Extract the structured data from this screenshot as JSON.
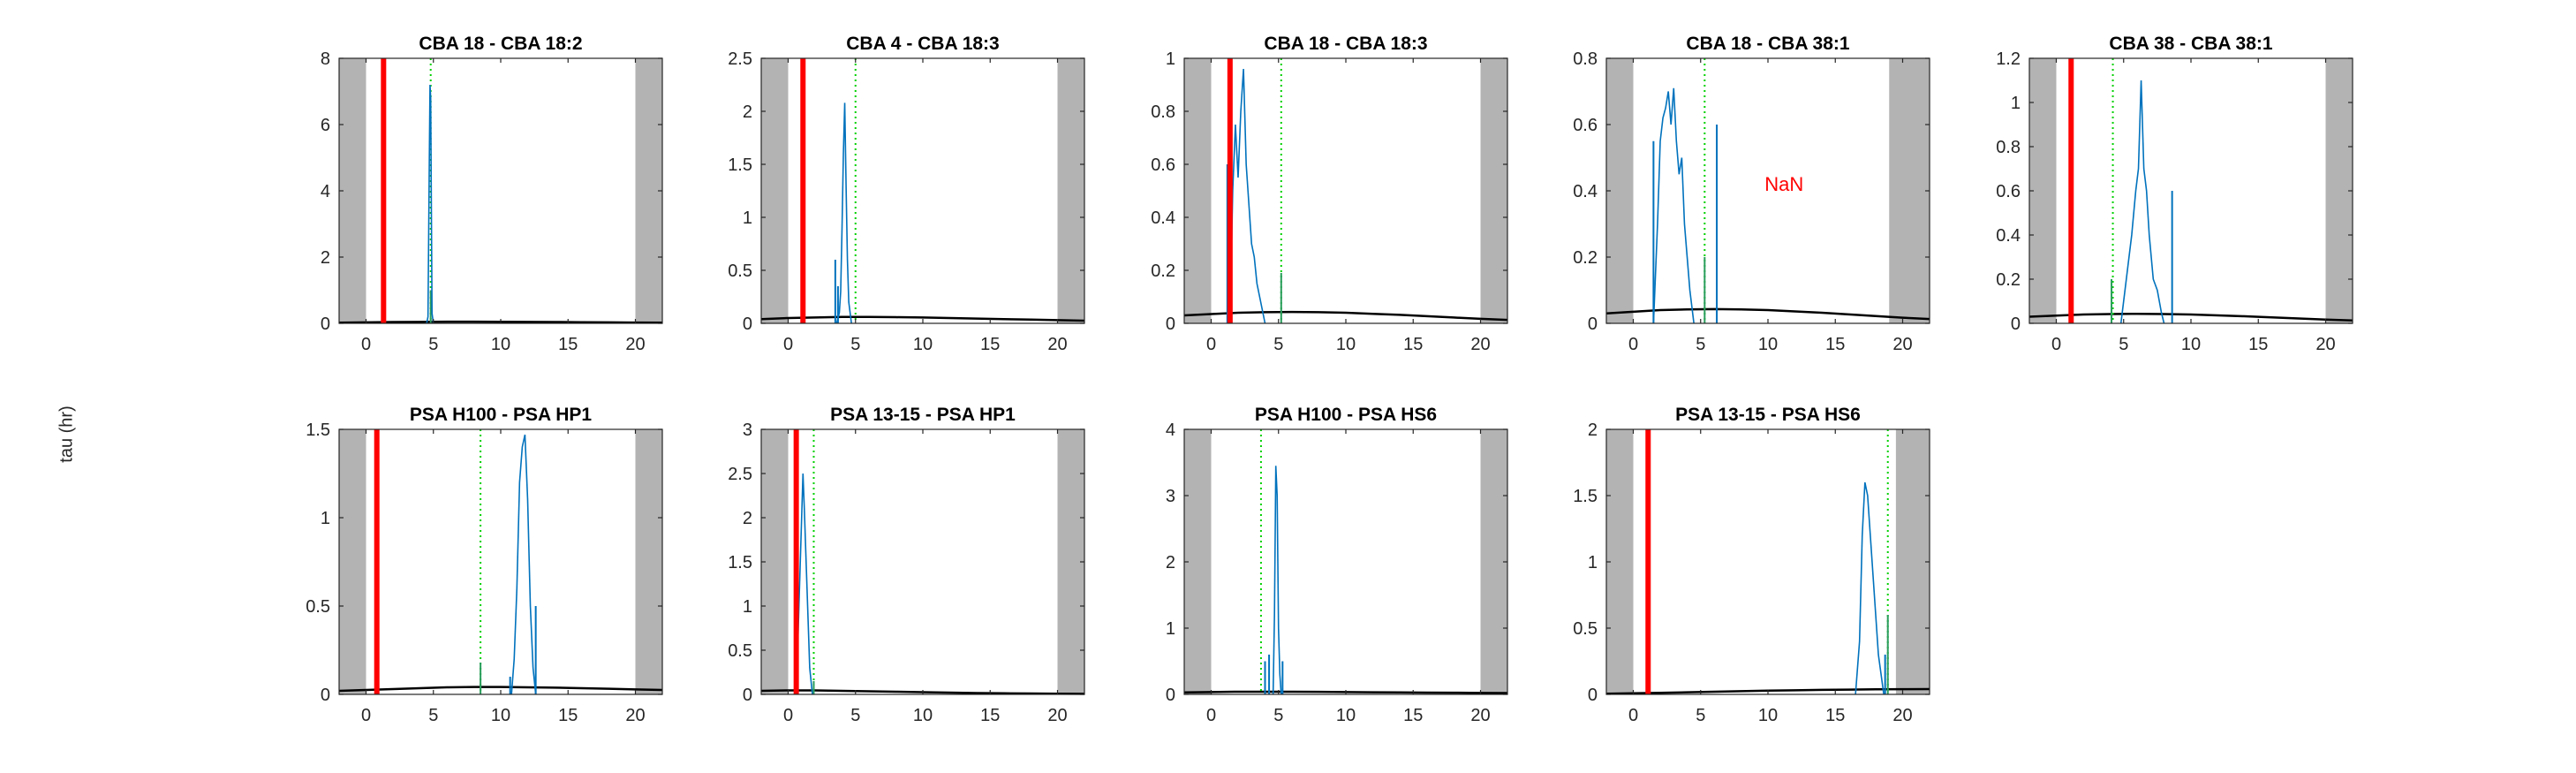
{
  "figure": {
    "ylabel": "tau (hr)"
  },
  "chart_data": [
    {
      "type": "line",
      "title": "CBA 18 - CBA 18:2",
      "xlim": [
        -2,
        22
      ],
      "ylim": [
        0,
        8
      ],
      "xticks": [
        0,
        5,
        10,
        15,
        20
      ],
      "yticks": [
        0,
        2,
        4,
        6,
        8
      ],
      "ytick_labels": [
        "0",
        "2",
        "4",
        "6",
        "8"
      ],
      "shaded_x": [
        [
          -2,
          0
        ],
        [
          20,
          22
        ]
      ],
      "red_line_x": 1.3,
      "green_dotted_x": 4.8,
      "green_stems": [
        {
          "x": 4.8,
          "y": 1.0
        }
      ],
      "blue_series": {
        "x": [
          4.5,
          4.6,
          4.7,
          4.75,
          4.8,
          4.85,
          4.9,
          5.0
        ],
        "y": [
          0,
          0.2,
          5.0,
          7.2,
          6.8,
          3.5,
          0.3,
          0
        ]
      },
      "blue_stems": [],
      "black_curve": {
        "x": [
          -2,
          0,
          2,
          4,
          6,
          8,
          10,
          12,
          14,
          16,
          18,
          20,
          22
        ],
        "y": [
          0.02,
          0.03,
          0.04,
          0.045,
          0.05,
          0.05,
          0.048,
          0.045,
          0.04,
          0.035,
          0.03,
          0.025,
          0.02
        ]
      },
      "annotation": ""
    },
    {
      "type": "line",
      "title": "CBA 4 - CBA 18:3",
      "xlim": [
        -2,
        22
      ],
      "ylim": [
        0,
        2.5
      ],
      "xticks": [
        0,
        5,
        10,
        15,
        20
      ],
      "yticks": [
        0,
        0.5,
        1,
        1.5,
        2,
        2.5
      ],
      "ytick_labels": [
        "0",
        "0.5",
        "1",
        "1.5",
        "2",
        "2.5"
      ],
      "shaded_x": [
        [
          -2,
          0
        ],
        [
          20,
          22
        ]
      ],
      "red_line_x": 1.1,
      "green_dotted_x": 5.0,
      "green_stems": [],
      "blue_series": {
        "x": [
          3.6,
          3.8,
          3.9,
          4.0,
          4.1,
          4.2,
          4.3,
          4.4,
          4.5,
          4.7
        ],
        "y": [
          0,
          0.1,
          0.3,
          0.9,
          1.6,
          2.08,
          1.3,
          0.6,
          0.2,
          0
        ]
      },
      "blue_stems": [
        {
          "x": 3.5,
          "y": 0.6
        },
        {
          "x": 3.7,
          "y": 0.35
        }
      ],
      "black_curve": {
        "x": [
          -2,
          0,
          2,
          4,
          6,
          8,
          10,
          12,
          14,
          16,
          18,
          20,
          22
        ],
        "y": [
          0.04,
          0.05,
          0.055,
          0.06,
          0.06,
          0.058,
          0.055,
          0.05,
          0.045,
          0.04,
          0.035,
          0.03,
          0.025
        ]
      },
      "annotation": ""
    },
    {
      "type": "line",
      "title": "CBA 18 - CBA 18:3",
      "xlim": [
        -2,
        22
      ],
      "ylim": [
        0,
        1
      ],
      "xticks": [
        0,
        5,
        10,
        15,
        20
      ],
      "yticks": [
        0,
        0.2,
        0.4,
        0.6,
        0.8,
        1
      ],
      "ytick_labels": [
        "0",
        "0.2",
        "0.4",
        "0.6",
        "0.8",
        "1"
      ],
      "shaded_x": [
        [
          -2,
          0
        ],
        [
          20,
          22
        ]
      ],
      "red_line_x": 1.4,
      "green_dotted_x": 5.2,
      "green_stems": [
        {
          "x": 5.2,
          "y": 0.19
        }
      ],
      "blue_series": {
        "x": [
          1.4,
          1.6,
          1.8,
          2.0,
          2.2,
          2.4,
          2.6,
          2.8,
          3.0,
          3.2,
          3.4,
          3.6,
          3.8,
          4.0
        ],
        "y": [
          0,
          0.5,
          0.75,
          0.55,
          0.8,
          0.96,
          0.6,
          0.45,
          0.3,
          0.25,
          0.15,
          0.1,
          0.05,
          0
        ]
      },
      "blue_stems": [
        {
          "x": 1.2,
          "y": 0.6
        }
      ],
      "black_curve": {
        "x": [
          -2,
          0,
          2,
          4,
          6,
          8,
          10,
          12,
          14,
          16,
          18,
          20,
          22
        ],
        "y": [
          0.03,
          0.035,
          0.04,
          0.042,
          0.043,
          0.042,
          0.04,
          0.036,
          0.032,
          0.027,
          0.022,
          0.017,
          0.013
        ]
      },
      "annotation": ""
    },
    {
      "type": "line",
      "title": "CBA 18 - CBA 38:1",
      "xlim": [
        -2,
        22
      ],
      "ylim": [
        0,
        0.8
      ],
      "xticks": [
        0,
        5,
        10,
        15,
        20
      ],
      "yticks": [
        0,
        0.2,
        0.4,
        0.6,
        0.8
      ],
      "ytick_labels": [
        "0",
        "0.2",
        "0.4",
        "0.6",
        "0.8"
      ],
      "shaded_x": [
        [
          -2,
          0
        ],
        [
          19,
          22
        ]
      ],
      "red_line_x": null,
      "green_dotted_x": 5.3,
      "green_stems": [
        {
          "x": 5.3,
          "y": 0.2
        }
      ],
      "blue_series": {
        "x": [
          1.5,
          1.8,
          2.0,
          2.2,
          2.4,
          2.6,
          2.8,
          3.0,
          3.2,
          3.4,
          3.6,
          3.8,
          4.0,
          4.2,
          4.5
        ],
        "y": [
          0,
          0.3,
          0.55,
          0.62,
          0.65,
          0.7,
          0.6,
          0.71,
          0.55,
          0.45,
          0.5,
          0.3,
          0.2,
          0.1,
          0
        ]
      },
      "blue_stems": [
        {
          "x": 1.5,
          "y": 0.55
        },
        {
          "x": 6.2,
          "y": 0.6
        }
      ],
      "black_curve": {
        "x": [
          -2,
          0,
          2,
          4,
          6,
          8,
          10,
          12,
          14,
          16,
          18,
          20,
          22
        ],
        "y": [
          0.03,
          0.035,
          0.04,
          0.042,
          0.043,
          0.042,
          0.04,
          0.036,
          0.032,
          0.027,
          0.022,
          0.017,
          0.013
        ]
      },
      "annotation": "NaN"
    },
    {
      "type": "line",
      "title": "CBA 38 - CBA 38:1",
      "xlim": [
        -2,
        22
      ],
      "ylim": [
        0,
        1.2
      ],
      "xticks": [
        0,
        5,
        10,
        15,
        20
      ],
      "yticks": [
        0,
        0.2,
        0.4,
        0.6,
        0.8,
        1,
        1.2
      ],
      "ytick_labels": [
        "0",
        "0.2",
        "0.4",
        "0.6",
        "0.8",
        "1",
        "1.2"
      ],
      "shaded_x": [
        [
          -2,
          0
        ],
        [
          20,
          22
        ]
      ],
      "red_line_x": 1.1,
      "green_dotted_x": 4.2,
      "green_stems": [
        {
          "x": 4.1,
          "y": 0.2
        }
      ],
      "blue_series": {
        "x": [
          4.8,
          5.2,
          5.6,
          5.9,
          6.1,
          6.3,
          6.5,
          6.7,
          6.9,
          7.2,
          7.5,
          7.8,
          8.0
        ],
        "y": [
          0,
          0.2,
          0.4,
          0.6,
          0.7,
          1.1,
          0.7,
          0.6,
          0.4,
          0.2,
          0.15,
          0.05,
          0
        ]
      },
      "blue_stems": [
        {
          "x": 8.6,
          "y": 0.6
        }
      ],
      "black_curve": {
        "x": [
          -2,
          0,
          2,
          4,
          6,
          8,
          10,
          12,
          14,
          16,
          18,
          20,
          22
        ],
        "y": [
          0.03,
          0.035,
          0.04,
          0.042,
          0.043,
          0.042,
          0.04,
          0.036,
          0.032,
          0.027,
          0.022,
          0.017,
          0.013
        ]
      },
      "annotation": ""
    },
    {
      "type": "line",
      "title": "PSA H100 - PSA HP1",
      "xlim": [
        -2,
        22
      ],
      "ylim": [
        0,
        1.5
      ],
      "xticks": [
        0,
        5,
        10,
        15,
        20
      ],
      "yticks": [
        0,
        0.5,
        1,
        1.5
      ],
      "ytick_labels": [
        "0",
        "0.5",
        "1",
        "1.5"
      ],
      "shaded_x": [
        [
          -2,
          0
        ],
        [
          20,
          22
        ]
      ],
      "red_line_x": 0.8,
      "green_dotted_x": 8.5,
      "green_stems": [
        {
          "x": 8.5,
          "y": 0.18
        }
      ],
      "blue_series": {
        "x": [
          10.8,
          11.0,
          11.2,
          11.4,
          11.6,
          11.8,
          12.0,
          12.2,
          12.4,
          12.6
        ],
        "y": [
          0,
          0.2,
          0.6,
          1.2,
          1.4,
          1.47,
          1.1,
          0.5,
          0.15,
          0
        ]
      },
      "blue_stems": [
        {
          "x": 10.7,
          "y": 0.1
        },
        {
          "x": 12.6,
          "y": 0.5
        }
      ],
      "black_curve": {
        "x": [
          -2,
          0,
          2,
          4,
          6,
          8,
          10,
          12,
          14,
          16,
          18,
          20,
          22
        ],
        "y": [
          0.02,
          0.025,
          0.03,
          0.035,
          0.04,
          0.042,
          0.042,
          0.04,
          0.038,
          0.035,
          0.032,
          0.028,
          0.025
        ]
      },
      "annotation": ""
    },
    {
      "type": "line",
      "title": "PSA 13-15 - PSA HP1",
      "xlim": [
        -2,
        22
      ],
      "ylim": [
        0,
        3
      ],
      "xticks": [
        0,
        5,
        10,
        15,
        20
      ],
      "yticks": [
        0,
        0.5,
        1,
        1.5,
        2,
        2.5,
        3
      ],
      "ytick_labels": [
        "0",
        "0.5",
        "1",
        "1.5",
        "2",
        "2.5",
        "3"
      ],
      "shaded_x": [
        [
          -2,
          0
        ],
        [
          20,
          22
        ]
      ],
      "red_line_x": 0.6,
      "green_dotted_x": 1.9,
      "green_stems": [
        {
          "x": 1.9,
          "y": 0.15
        }
      ],
      "blue_series": {
        "x": [
          0.6,
          0.8,
          1.0,
          1.1,
          1.2,
          1.4,
          1.6,
          1.8
        ],
        "y": [
          0,
          1.0,
          2.0,
          2.5,
          2.1,
          1.2,
          0.3,
          0
        ]
      },
      "blue_stems": [],
      "black_curve": {
        "x": [
          -2,
          0,
          2,
          4,
          6,
          8,
          10,
          12,
          14,
          16,
          18,
          20,
          22
        ],
        "y": [
          0.04,
          0.045,
          0.045,
          0.04,
          0.035,
          0.03,
          0.025,
          0.02,
          0.015,
          0.012,
          0.01,
          0.008,
          0.006
        ]
      },
      "annotation": ""
    },
    {
      "type": "line",
      "title": "PSA H100 - PSA HS6",
      "xlim": [
        -2,
        22
      ],
      "ylim": [
        0,
        4
      ],
      "xticks": [
        0,
        5,
        10,
        15,
        20
      ],
      "yticks": [
        0,
        1,
        2,
        3,
        4
      ],
      "ytick_labels": [
        "0",
        "1",
        "2",
        "3",
        "4"
      ],
      "shaded_x": [
        [
          -2,
          0
        ],
        [
          20,
          22
        ]
      ],
      "red_line_x": null,
      "green_dotted_x": 3.7,
      "green_stems": [],
      "blue_series": {
        "x": [
          4.6,
          4.7,
          4.8,
          4.9,
          5.0,
          5.1,
          5.2
        ],
        "y": [
          0,
          1.2,
          3.45,
          3.0,
          1.0,
          0.3,
          0
        ]
      },
      "blue_stems": [
        {
          "x": 4.0,
          "y": 0.5
        },
        {
          "x": 4.3,
          "y": 0.6
        },
        {
          "x": 5.3,
          "y": 0.5
        }
      ],
      "black_curve": {
        "x": [
          -2,
          0,
          2,
          4,
          6,
          8,
          10,
          12,
          14,
          16,
          18,
          20,
          22
        ],
        "y": [
          0.03,
          0.035,
          0.04,
          0.04,
          0.04,
          0.038,
          0.035,
          0.032,
          0.03,
          0.027,
          0.025,
          0.022,
          0.02
        ]
      },
      "annotation": ""
    },
    {
      "type": "line",
      "title": "PSA 13-15 - PSA HS6",
      "xlim": [
        -2,
        22
      ],
      "ylim": [
        0,
        2
      ],
      "xticks": [
        0,
        5,
        10,
        15,
        20
      ],
      "yticks": [
        0,
        0.5,
        1,
        1.5,
        2
      ],
      "ytick_labels": [
        "0",
        "0.5",
        "1",
        "1.5",
        "2"
      ],
      "shaded_x": [
        [
          -2,
          0
        ],
        [
          19.5,
          22
        ]
      ],
      "red_line_x": 1.1,
      "green_dotted_x": 18.9,
      "green_stems": [
        {
          "x": 18.9,
          "y": 0.6
        }
      ],
      "blue_series": {
        "x": [
          16.5,
          16.8,
          17.0,
          17.2,
          17.4,
          17.6,
          17.8,
          18.0,
          18.2,
          18.4,
          18.6
        ],
        "y": [
          0,
          0.4,
          1.2,
          1.6,
          1.5,
          1.2,
          0.9,
          0.6,
          0.3,
          0.15,
          0
        ]
      },
      "blue_stems": [
        {
          "x": 18.7,
          "y": 0.3
        }
      ],
      "black_curve": {
        "x": [
          -2,
          0,
          2,
          4,
          6,
          8,
          10,
          12,
          14,
          16,
          18,
          20,
          22
        ],
        "y": [
          0.005,
          0.008,
          0.012,
          0.016,
          0.02,
          0.024,
          0.028,
          0.031,
          0.034,
          0.036,
          0.038,
          0.039,
          0.04
        ]
      },
      "annotation": ""
    }
  ]
}
